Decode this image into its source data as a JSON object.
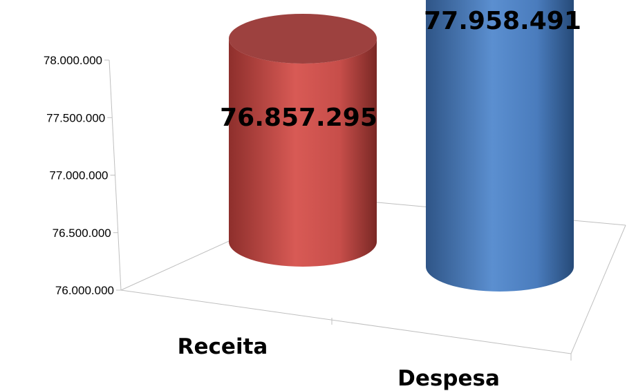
{
  "chart_data": {
    "type": "bar",
    "style": "3d-cylinder",
    "categories": [
      "Receita",
      "Despesa"
    ],
    "values": [
      76857295,
      77958491
    ],
    "value_labels": [
      "76.857.295",
      "77.958.491"
    ],
    "colors": [
      "#C0504D",
      "#4F81BD"
    ],
    "y_ticks": [
      "76.000.000",
      "76.500.000",
      "77.000.000",
      "77.500.000",
      "78.000.000"
    ],
    "ylim": [
      76000000,
      78000000
    ],
    "grid": false,
    "legend": "none"
  }
}
